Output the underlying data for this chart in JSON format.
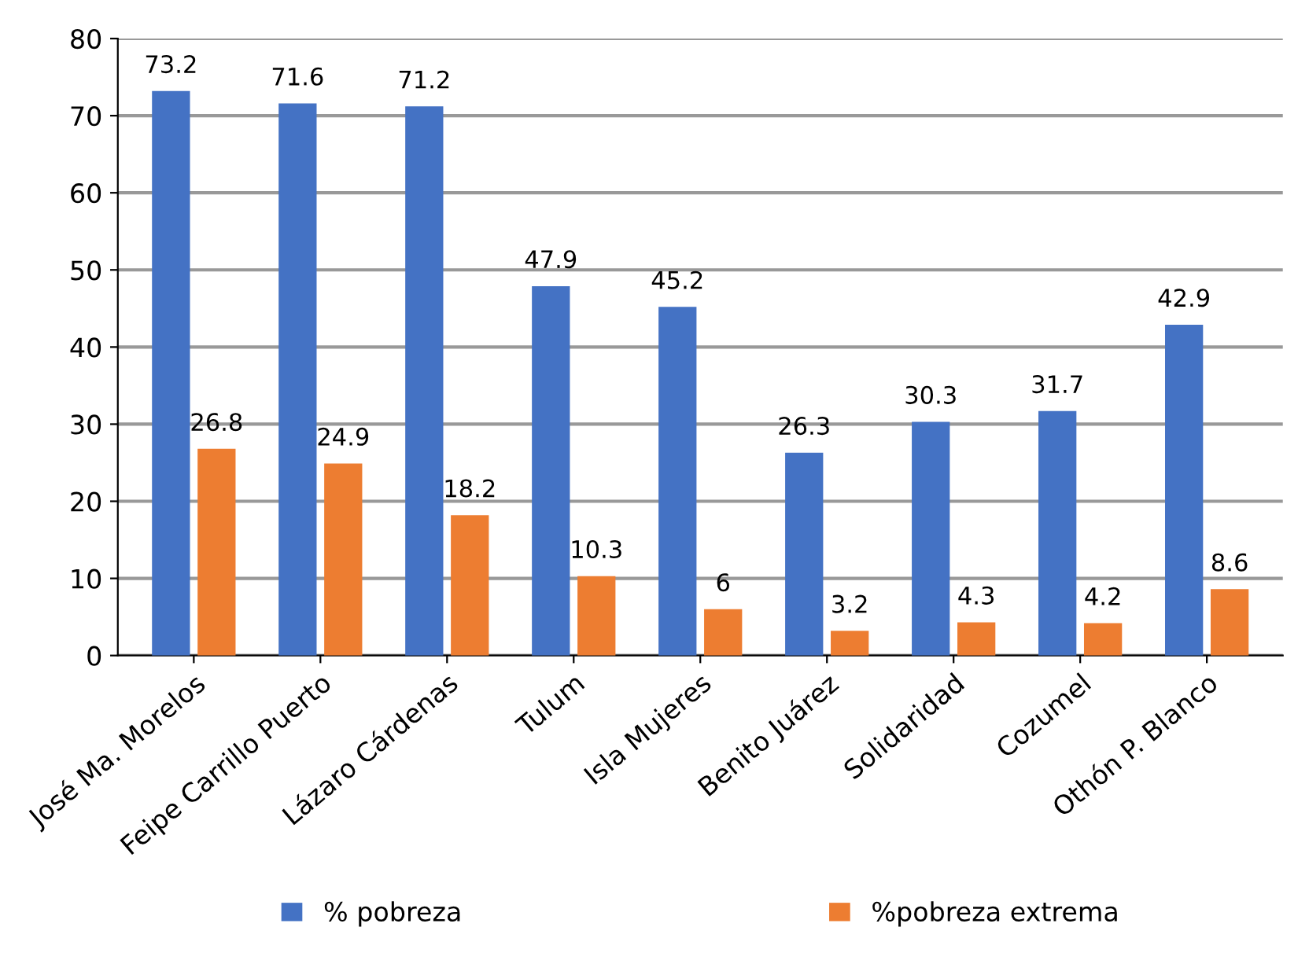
{
  "chart_data": {
    "type": "bar",
    "categories": [
      "José Ma. Morelos",
      "Feipe Carrillo Puerto",
      "Lázaro Cárdenas",
      "Tulum",
      "Isla Mujeres",
      "Benito Juárez",
      "Solidaridad",
      "Cozumel",
      "Othón P. Blanco"
    ],
    "series": [
      {
        "name": "% pobreza",
        "color": "#4472c4",
        "values": [
          73.2,
          71.6,
          71.2,
          47.9,
          45.2,
          26.3,
          30.3,
          31.7,
          42.9
        ]
      },
      {
        "name": "%pobreza extrema",
        "color": "#ed7d31",
        "values": [
          26.8,
          24.9,
          18.2,
          10.3,
          6,
          3.2,
          4.3,
          4.2,
          8.6
        ]
      }
    ],
    "ylim": [
      0,
      80
    ],
    "yticks": [
      0,
      10,
      20,
      30,
      40,
      50,
      60,
      70,
      80
    ],
    "grid": "y",
    "legend": "bottom",
    "data_labels": true
  }
}
